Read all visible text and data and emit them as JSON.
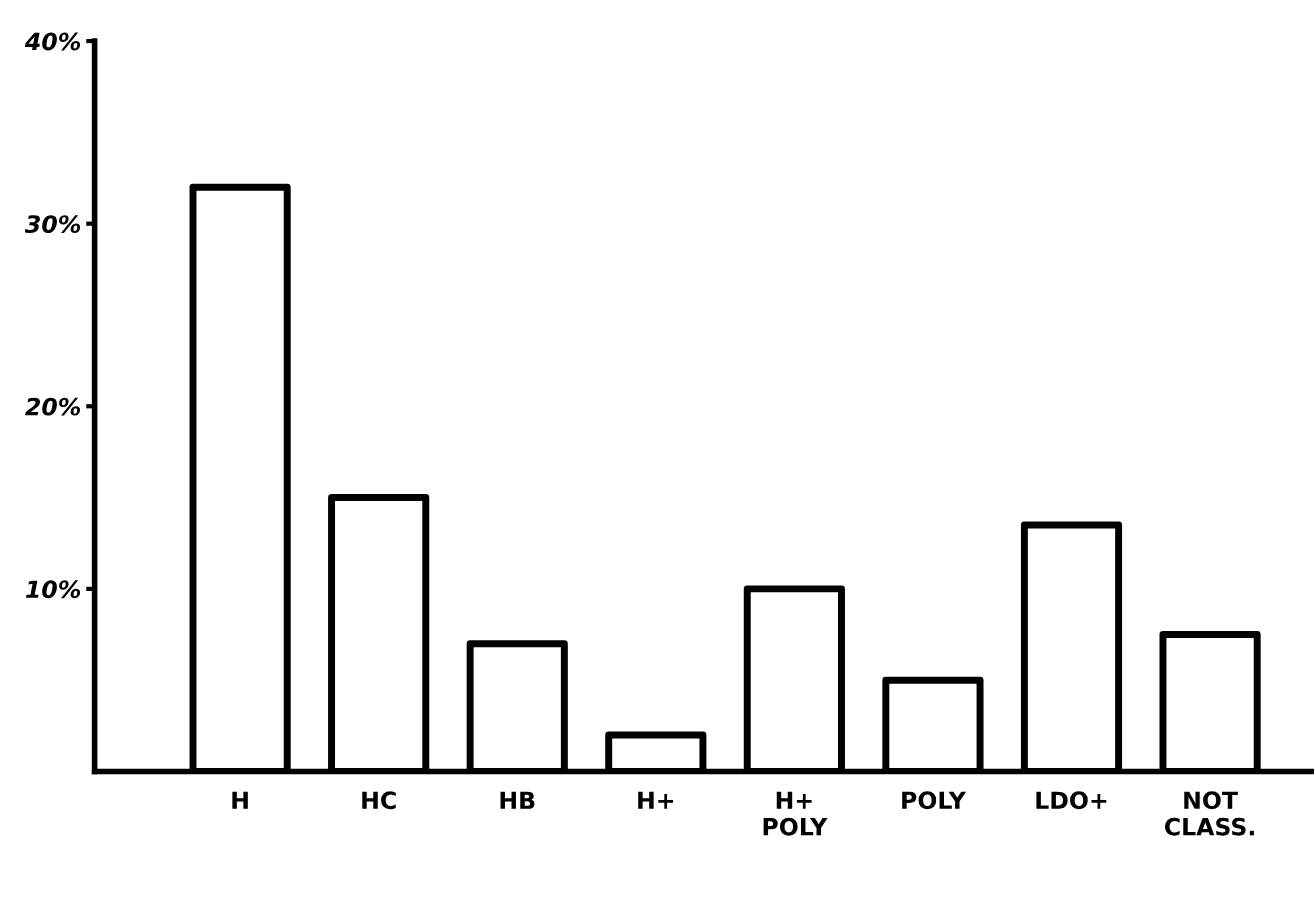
{
  "chart_data": {
    "type": "bar",
    "categories": [
      "H",
      "HC",
      "HB",
      "H+",
      "H+\nPOLY",
      "POLY",
      "LDO+",
      "NOT\nCLASS."
    ],
    "values": [
      32,
      15,
      7,
      2,
      10,
      5,
      13.5,
      7.5
    ],
    "color": "#000000",
    "ylim": [
      0,
      40
    ],
    "yticks": [
      {
        "value": 10,
        "label": "10%"
      },
      {
        "value": 20,
        "label": "20%"
      },
      {
        "value": 30,
        "label": "30%"
      },
      {
        "value": 40,
        "label": "40%"
      }
    ],
    "grid": false
  }
}
